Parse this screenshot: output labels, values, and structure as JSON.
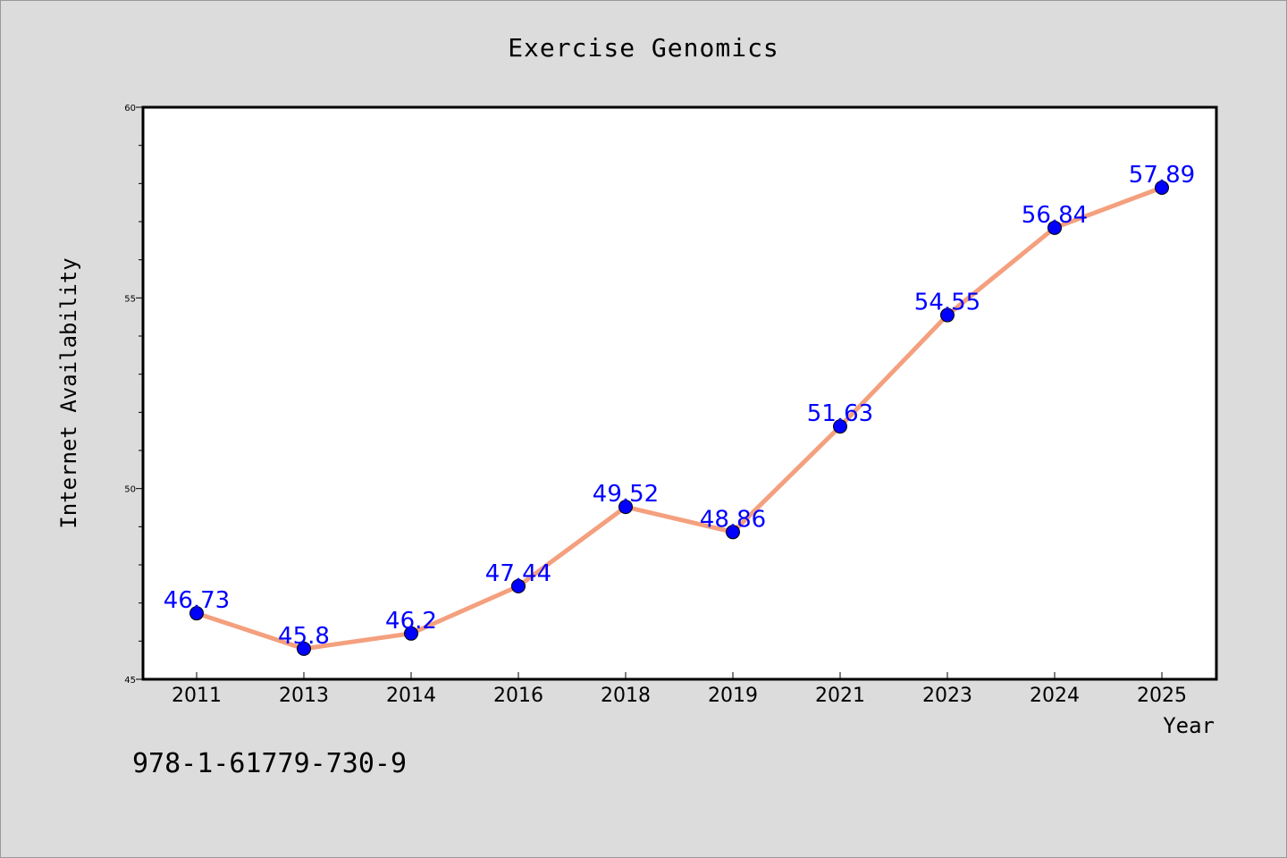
{
  "chart_data": {
    "type": "line",
    "title": "Exercise Genomics",
    "xlabel": "Year",
    "ylabel": "Internet Availability",
    "categories": [
      "2011",
      "2013",
      "2014",
      "2016",
      "2018",
      "2019",
      "2021",
      "2023",
      "2024",
      "2025"
    ],
    "series": [
      {
        "values": [
          46.73,
          45.8,
          46.2,
          47.44,
          49.52,
          48.86,
          51.63,
          54.55,
          56.84,
          57.89
        ],
        "labels": [
          "46.73",
          "45.8",
          "46.2",
          "47.44",
          "49.52",
          "48.86",
          "51.63",
          "54.55",
          "56.84",
          "57.89"
        ],
        "line_color": "#f4a07e",
        "marker_color": "#0000ff"
      }
    ],
    "ylim": [
      45,
      60
    ],
    "yticks": [
      "45",
      "50",
      "55",
      "60"
    ],
    "grid": false,
    "legend": "none"
  },
  "footer": {
    "code": "978-1-61779-730-9"
  }
}
